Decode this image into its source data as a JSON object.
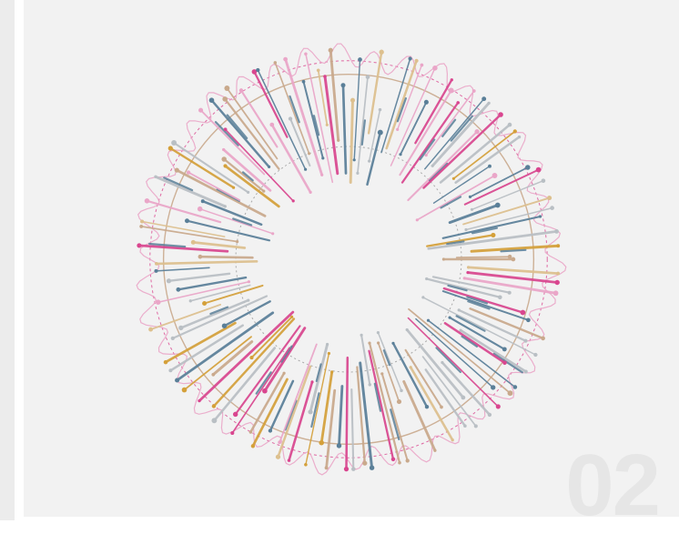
{
  "panel": {
    "number": "02"
  },
  "chart_data": {
    "type": "radial-lollipop",
    "count": 140,
    "inner_radius": 0.34,
    "outer_radius": 0.93,
    "colors": {
      "pink": "#d9468f",
      "pink_light": "#eaa6c8",
      "gold": "#d4a03a",
      "gold_light": "#ddc08e",
      "blue": "#5a7f98",
      "grey": "#b9bfc4",
      "tan": "#c9a98c"
    },
    "palette": [
      "pink",
      "gold",
      "blue",
      "grey",
      "tan",
      "gold_light",
      "pink_light",
      "blue",
      "grey",
      "tan"
    ]
  }
}
